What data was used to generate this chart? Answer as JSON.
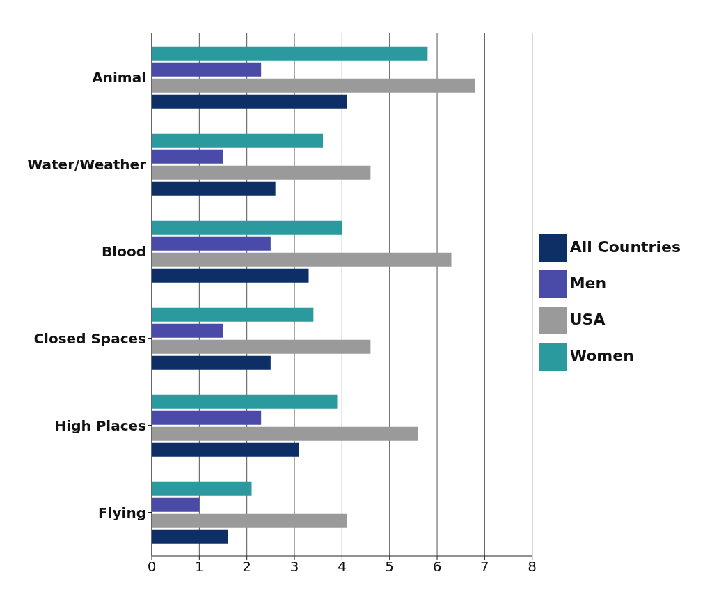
{
  "chart_data": {
    "type": "bar",
    "orientation": "horizontal",
    "categories": [
      "Animal",
      "Water/Weather",
      "Blood",
      "Closed Spaces",
      "High Places",
      "Flying"
    ],
    "series": [
      {
        "name": "Women",
        "color": "#2a9a9e",
        "values": [
          5.8,
          3.6,
          4.0,
          3.4,
          3.9,
          2.1
        ]
      },
      {
        "name": "Men",
        "color": "#4a4aa8",
        "values": [
          2.3,
          1.5,
          2.5,
          1.5,
          2.3,
          1.0
        ]
      },
      {
        "name": "USA",
        "color": "#9a9a9a",
        "values": [
          6.8,
          4.6,
          6.3,
          4.6,
          5.6,
          4.1
        ]
      },
      {
        "name": "All Countries",
        "color": "#0e2f66",
        "values": [
          4.1,
          2.6,
          3.3,
          2.5,
          3.1,
          1.6
        ]
      }
    ],
    "xlim": [
      0,
      8
    ],
    "xticks": [
      0,
      1,
      2,
      3,
      4,
      5,
      6,
      7,
      8
    ],
    "grid": "x",
    "legend": "right"
  }
}
